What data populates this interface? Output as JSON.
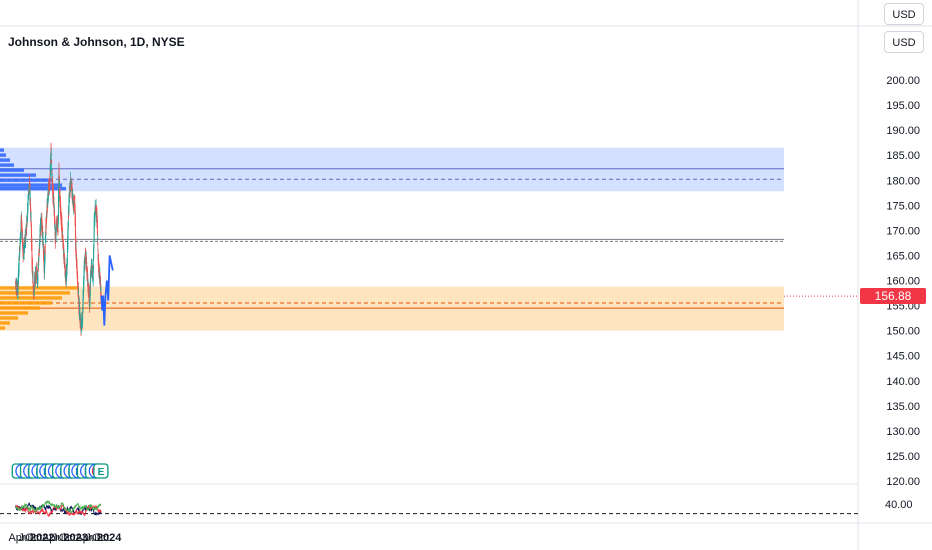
{
  "header": {
    "title": "Johnson & Johnson, 1D, NYSE"
  },
  "currency": {
    "top": "USD",
    "second": "USD"
  },
  "last_price": "156.88",
  "colors": {
    "up": "#26a69a",
    "down": "#ef5350",
    "zone_blue": "#2962ff",
    "zone_orange": "#ff9800",
    "forecast": "#2962ff",
    "last_price": "#f23645",
    "earnings": "#089981",
    "dividend": "#2962ff",
    "osc_navy": "#0d1b5e",
    "osc_red": "#f23645",
    "osc_green": "#4caf50"
  },
  "chart_data": {
    "type": "candlestick",
    "y_axis": {
      "ylim": [
        120,
        205
      ],
      "ticks": [
        "200.00",
        "195.00",
        "190.00",
        "185.00",
        "180.00",
        "175.00",
        "170.00",
        "165.00",
        "160.00",
        "155.00",
        "150.00",
        "145.00",
        "140.00",
        "135.00",
        "130.00",
        "125.00",
        "120.00"
      ]
    },
    "x_axis": {
      "ticks": [
        {
          "label": "Apr",
          "day": 0,
          "bold": false
        },
        {
          "label": "Jul",
          "day": 91,
          "bold": false
        },
        {
          "label": "Oct",
          "day": 183,
          "bold": false
        },
        {
          "label": "2022",
          "day": 275,
          "bold": true
        },
        {
          "label": "Apr",
          "day": 365,
          "bold": false
        },
        {
          "label": "Jul",
          "day": 456,
          "bold": false
        },
        {
          "label": "Oct",
          "day": 548,
          "bold": false
        },
        {
          "label": "2023",
          "day": 640,
          "bold": true
        },
        {
          "label": "Apr",
          "day": 730,
          "bold": false
        },
        {
          "label": "Jul",
          "day": 821,
          "bold": false
        },
        {
          "label": "Oct",
          "day": 913,
          "bold": false
        },
        {
          "label": "2024",
          "day": 1005,
          "bold": true
        }
      ]
    },
    "price_path": [
      [
        -20,
        160
      ],
      [
        10,
        158
      ],
      [
        30,
        166
      ],
      [
        50,
        172
      ],
      [
        70,
        165
      ],
      [
        90,
        168
      ],
      [
        110,
        172
      ],
      [
        128,
        178
      ],
      [
        138,
        179
      ],
      [
        155,
        172
      ],
      [
        165,
        164
      ],
      [
        175,
        160
      ],
      [
        185,
        157
      ],
      [
        195,
        160
      ],
      [
        210,
        162
      ],
      [
        225,
        160
      ],
      [
        240,
        165
      ],
      [
        255,
        170
      ],
      [
        270,
        172
      ],
      [
        285,
        168
      ],
      [
        300,
        162
      ],
      [
        315,
        170
      ],
      [
        330,
        175
      ],
      [
        345,
        178
      ],
      [
        360,
        180
      ],
      [
        372,
        186
      ],
      [
        380,
        182
      ],
      [
        390,
        178
      ],
      [
        405,
        175
      ],
      [
        420,
        168
      ],
      [
        435,
        172
      ],
      [
        450,
        170
      ],
      [
        458,
        182
      ],
      [
        470,
        176
      ],
      [
        485,
        172
      ],
      [
        500,
        168
      ],
      [
        515,
        165
      ],
      [
        525,
        162
      ],
      [
        535,
        160
      ],
      [
        548,
        163
      ],
      [
        560,
        172
      ],
      [
        575,
        178
      ],
      [
        590,
        180
      ],
      [
        605,
        177
      ],
      [
        620,
        175
      ],
      [
        632,
        176
      ],
      [
        640,
        168
      ],
      [
        655,
        162
      ],
      [
        668,
        158
      ],
      [
        685,
        153
      ],
      [
        700,
        151
      ],
      [
        715,
        152
      ],
      [
        725,
        158
      ],
      [
        735,
        163
      ],
      [
        750,
        165
      ],
      [
        765,
        162
      ],
      [
        780,
        158
      ],
      [
        795,
        155
      ],
      [
        805,
        162
      ],
      [
        820,
        163
      ],
      [
        830,
        160
      ],
      [
        845,
        172
      ],
      [
        860,
        175
      ],
      [
        875,
        172
      ],
      [
        885,
        165
      ],
      [
        895,
        162
      ],
      [
        910,
        160
      ],
      [
        918,
        156.88
      ]
    ],
    "forecast": [
      [
        920,
        157
      ],
      [
        930,
        154
      ],
      [
        940,
        157
      ],
      [
        952,
        151
      ],
      [
        965,
        157
      ],
      [
        980,
        160
      ],
      [
        995,
        156
      ],
      [
        1010,
        165
      ],
      [
        1045,
        162
      ]
    ],
    "zones": [
      {
        "name": "upper-zone",
        "top": 186.5,
        "bottom": 177.8,
        "mid_solid": 182.3,
        "mid_dashed": 180.2
      },
      {
        "name": "lower-zone",
        "top": 158.8,
        "bottom": 150.0,
        "mid_solid": 154.5,
        "mid_dashed": 155.5
      }
    ],
    "reference_lines": [
      168.2,
      167.8
    ],
    "volume_profile": [
      {
        "price": 186.0,
        "len": 4
      },
      {
        "price": 185.0,
        "len": 6
      },
      {
        "price": 184.0,
        "len": 10
      },
      {
        "price": 183.0,
        "len": 14
      },
      {
        "price": 182.0,
        "len": 24
      },
      {
        "price": 181.0,
        "len": 36
      },
      {
        "price": 180.0,
        "len": 52
      },
      {
        "price": 179.0,
        "len": 62
      },
      {
        "price": 178.3,
        "len": 66
      },
      {
        "price": 158.5,
        "len": 78
      },
      {
        "price": 157.5,
        "len": 70
      },
      {
        "price": 156.5,
        "len": 62
      },
      {
        "price": 155.5,
        "len": 52
      },
      {
        "price": 154.5,
        "len": 40
      },
      {
        "price": 153.5,
        "len": 28
      },
      {
        "price": 152.5,
        "len": 18
      },
      {
        "price": 151.5,
        "len": 10
      },
      {
        "price": 150.5,
        "len": 5
      }
    ],
    "events": [
      {
        "type": "E",
        "day": 25
      },
      {
        "type": "D",
        "day": 65
      },
      {
        "type": "E",
        "day": 115
      },
      {
        "type": "D",
        "day": 150
      },
      {
        "type": "E",
        "day": 205
      },
      {
        "type": "D",
        "day": 240
      },
      {
        "type": "E",
        "day": 295
      },
      {
        "type": "D",
        "day": 325
      },
      {
        "type": "E",
        "day": 385
      },
      {
        "type": "D",
        "day": 420
      },
      {
        "type": "E",
        "day": 465
      },
      {
        "type": "D",
        "day": 500
      },
      {
        "type": "E",
        "day": 555
      },
      {
        "type": "D",
        "day": 590
      },
      {
        "type": "E",
        "day": 645
      },
      {
        "type": "D",
        "day": 675
      },
      {
        "type": "E",
        "day": 735
      },
      {
        "type": "D",
        "day": 770
      },
      {
        "type": "E",
        "day": 825
      },
      {
        "type": "D",
        "day": 865
      },
      {
        "type": "S",
        "day": 900
      },
      {
        "type": "E",
        "day": 915
      }
    ],
    "oscillator": {
      "ylim": [
        20,
        60
      ],
      "tick": "40.00",
      "dashed_level": 28,
      "series_names": []
    }
  }
}
